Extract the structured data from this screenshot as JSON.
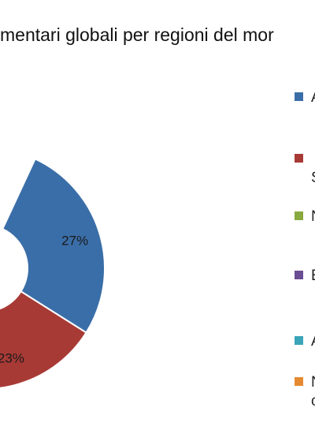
{
  "chart_data": {
    "type": "pie",
    "title": "mentari globali per regioni del mor",
    "series": [
      {
        "label_lines": [
          "A"
        ],
        "value": 27,
        "display": "27%",
        "color": "#3A6EA8"
      },
      {
        "label_lines": [
          "",
          "S"
        ],
        "value": 23,
        "display": "23%",
        "color": "#A83A36"
      },
      {
        "label_lines": [
          "N"
        ],
        "value": null,
        "display": "",
        "color": "#88A93D"
      },
      {
        "label_lines": [
          "E"
        ],
        "value": null,
        "display": "",
        "color": "#6A4D92"
      },
      {
        "label_lines": [
          "A"
        ],
        "value": null,
        "display": "",
        "color": "#3AA5B8"
      },
      {
        "label_lines": [
          "N",
          "c"
        ],
        "value": null,
        "display": "",
        "color": "#E58A30"
      }
    ],
    "legend_position": "right",
    "donut": true
  }
}
